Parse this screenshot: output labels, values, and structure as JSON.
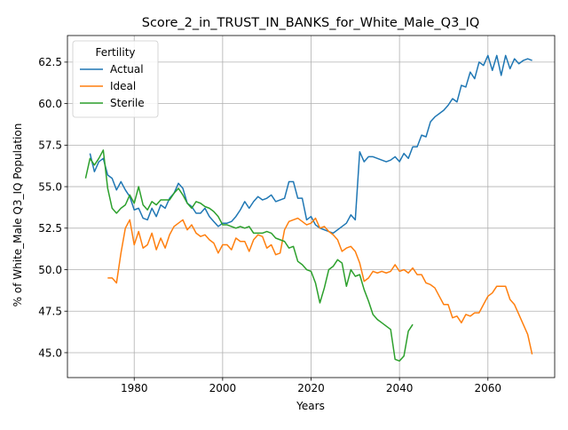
{
  "chart_data": {
    "type": "line",
    "title": "Score_2_in_TRUST_IN_BANKS_for_White_Male_Q3_IQ",
    "xlabel": "Years",
    "ylabel": "% of White_Male Q3_IQ Population",
    "xlim": [
      1964.9,
      2075.1
    ],
    "ylim": [
      43.5,
      64.1
    ],
    "xticks": [
      1980,
      2000,
      2020,
      2040,
      2060
    ],
    "yticks": [
      45.0,
      47.5,
      50.0,
      52.5,
      55.0,
      57.5,
      60.0,
      62.5
    ],
    "grid": true,
    "legend": {
      "title": "Fertility",
      "position": "upper-left"
    },
    "series": [
      {
        "name": "Actual",
        "color": "#1f77b4",
        "points": [
          [
            1970,
            57.0
          ],
          [
            1971,
            55.9
          ],
          [
            1972,
            56.5
          ],
          [
            1973,
            56.7
          ],
          [
            1974,
            55.7
          ],
          [
            1975,
            55.5
          ],
          [
            1976,
            54.8
          ],
          [
            1977,
            55.3
          ],
          [
            1978,
            54.8
          ],
          [
            1979,
            54.4
          ],
          [
            1980,
            53.6
          ],
          [
            1981,
            53.7
          ],
          [
            1982,
            53.1
          ],
          [
            1983,
            53.0
          ],
          [
            1984,
            53.7
          ],
          [
            1985,
            53.2
          ],
          [
            1986,
            53.9
          ],
          [
            1987,
            53.7
          ],
          [
            1988,
            54.3
          ],
          [
            1989,
            54.6
          ],
          [
            1990,
            55.2
          ],
          [
            1991,
            54.9
          ],
          [
            1992,
            54.0
          ],
          [
            1993,
            53.8
          ],
          [
            1994,
            53.4
          ],
          [
            1995,
            53.4
          ],
          [
            1996,
            53.7
          ],
          [
            1997,
            53.2
          ],
          [
            1998,
            52.9
          ],
          [
            1999,
            52.6
          ],
          [
            2000,
            52.8
          ],
          [
            2001,
            52.8
          ],
          [
            2002,
            52.9
          ],
          [
            2003,
            53.2
          ],
          [
            2004,
            53.6
          ],
          [
            2005,
            54.1
          ],
          [
            2006,
            53.7
          ],
          [
            2007,
            54.1
          ],
          [
            2008,
            54.4
          ],
          [
            2009,
            54.2
          ],
          [
            2010,
            54.3
          ],
          [
            2011,
            54.5
          ],
          [
            2012,
            54.1
          ],
          [
            2013,
            54.2
          ],
          [
            2014,
            54.3
          ],
          [
            2015,
            55.3
          ],
          [
            2016,
            55.3
          ],
          [
            2017,
            54.3
          ],
          [
            2018,
            54.3
          ],
          [
            2019,
            53.0
          ],
          [
            2020,
            53.2
          ],
          [
            2021,
            52.7
          ],
          [
            2022,
            52.5
          ],
          [
            2023,
            52.4
          ],
          [
            2024,
            52.3
          ],
          [
            2025,
            52.2
          ],
          [
            2026,
            52.4
          ],
          [
            2027,
            52.6
          ],
          [
            2028,
            52.8
          ],
          [
            2029,
            53.3
          ],
          [
            2030,
            53.0
          ],
          [
            2031,
            57.1
          ],
          [
            2032,
            56.5
          ],
          [
            2033,
            56.8
          ],
          [
            2034,
            56.8
          ],
          [
            2035,
            56.7
          ],
          [
            2036,
            56.6
          ],
          [
            2037,
            56.5
          ],
          [
            2038,
            56.6
          ],
          [
            2039,
            56.8
          ],
          [
            2040,
            56.5
          ],
          [
            2041,
            57.0
          ],
          [
            2042,
            56.7
          ],
          [
            2043,
            57.4
          ],
          [
            2044,
            57.4
          ],
          [
            2045,
            58.1
          ],
          [
            2046,
            58.0
          ],
          [
            2047,
            58.9
          ],
          [
            2048,
            59.2
          ],
          [
            2049,
            59.4
          ],
          [
            2050,
            59.6
          ],
          [
            2051,
            59.9
          ],
          [
            2052,
            60.3
          ],
          [
            2053,
            60.1
          ],
          [
            2054,
            61.1
          ],
          [
            2055,
            61.0
          ],
          [
            2056,
            61.9
          ],
          [
            2057,
            61.5
          ],
          [
            2058,
            62.5
          ],
          [
            2059,
            62.3
          ],
          [
            2060,
            62.9
          ],
          [
            2061,
            62.0
          ],
          [
            2062,
            62.9
          ],
          [
            2063,
            61.7
          ],
          [
            2064,
            62.9
          ],
          [
            2065,
            62.1
          ],
          [
            2066,
            62.7
          ],
          [
            2067,
            62.4
          ],
          [
            2068,
            62.6
          ],
          [
            2069,
            62.7
          ],
          [
            2070,
            62.6
          ]
        ]
      },
      {
        "name": "Ideal",
        "color": "#ff7f0e",
        "points": [
          [
            1974,
            49.5
          ],
          [
            1975,
            49.5
          ],
          [
            1976,
            49.2
          ],
          [
            1977,
            51.0
          ],
          [
            1978,
            52.5
          ],
          [
            1979,
            53.0
          ],
          [
            1980,
            51.5
          ],
          [
            1981,
            52.3
          ],
          [
            1982,
            51.3
          ],
          [
            1983,
            51.5
          ],
          [
            1984,
            52.2
          ],
          [
            1985,
            51.2
          ],
          [
            1986,
            51.9
          ],
          [
            1987,
            51.3
          ],
          [
            1988,
            52.1
          ],
          [
            1989,
            52.6
          ],
          [
            1990,
            52.8
          ],
          [
            1991,
            53.0
          ],
          [
            1992,
            52.4
          ],
          [
            1993,
            52.7
          ],
          [
            1994,
            52.2
          ],
          [
            1995,
            52.0
          ],
          [
            1996,
            52.1
          ],
          [
            1997,
            51.8
          ],
          [
            1998,
            51.6
          ],
          [
            1999,
            51.0
          ],
          [
            2000,
            51.5
          ],
          [
            2001,
            51.5
          ],
          [
            2002,
            51.2
          ],
          [
            2003,
            51.9
          ],
          [
            2004,
            51.7
          ],
          [
            2005,
            51.7
          ],
          [
            2006,
            51.1
          ],
          [
            2007,
            51.8
          ],
          [
            2008,
            52.1
          ],
          [
            2009,
            52.0
          ],
          [
            2010,
            51.3
          ],
          [
            2011,
            51.5
          ],
          [
            2012,
            50.9
          ],
          [
            2013,
            51.0
          ],
          [
            2014,
            52.4
          ],
          [
            2015,
            52.9
          ],
          [
            2016,
            53.0
          ],
          [
            2017,
            53.1
          ],
          [
            2018,
            52.9
          ],
          [
            2019,
            52.7
          ],
          [
            2020,
            52.8
          ],
          [
            2021,
            53.1
          ],
          [
            2022,
            52.5
          ],
          [
            2023,
            52.6
          ],
          [
            2024,
            52.3
          ],
          [
            2025,
            52.1
          ],
          [
            2026,
            51.8
          ],
          [
            2027,
            51.1
          ],
          [
            2028,
            51.3
          ],
          [
            2029,
            51.4
          ],
          [
            2030,
            51.1
          ],
          [
            2031,
            50.4
          ],
          [
            2032,
            49.3
          ],
          [
            2033,
            49.5
          ],
          [
            2034,
            49.9
          ],
          [
            2035,
            49.8
          ],
          [
            2036,
            49.9
          ],
          [
            2037,
            49.8
          ],
          [
            2038,
            49.9
          ],
          [
            2039,
            50.3
          ],
          [
            2040,
            49.9
          ],
          [
            2041,
            50.0
          ],
          [
            2042,
            49.8
          ],
          [
            2043,
            50.1
          ],
          [
            2044,
            49.7
          ],
          [
            2045,
            49.7
          ],
          [
            2046,
            49.2
          ],
          [
            2047,
            49.1
          ],
          [
            2048,
            48.9
          ],
          [
            2049,
            48.4
          ],
          [
            2050,
            47.9
          ],
          [
            2051,
            47.9
          ],
          [
            2052,
            47.1
          ],
          [
            2053,
            47.2
          ],
          [
            2054,
            46.8
          ],
          [
            2055,
            47.3
          ],
          [
            2056,
            47.2
          ],
          [
            2057,
            47.4
          ],
          [
            2058,
            47.4
          ],
          [
            2059,
            47.9
          ],
          [
            2060,
            48.4
          ],
          [
            2061,
            48.6
          ],
          [
            2062,
            49.0
          ],
          [
            2063,
            49.0
          ],
          [
            2064,
            49.0
          ],
          [
            2065,
            48.2
          ],
          [
            2066,
            47.9
          ],
          [
            2067,
            47.3
          ],
          [
            2068,
            46.7
          ],
          [
            2069,
            46.1
          ],
          [
            2070,
            44.9
          ]
        ]
      },
      {
        "name": "Sterile",
        "color": "#2ca02c",
        "points": [
          [
            1969,
            55.5
          ],
          [
            1970,
            56.7
          ],
          [
            1971,
            56.3
          ],
          [
            1972,
            56.7
          ],
          [
            1973,
            57.2
          ],
          [
            1974,
            54.9
          ],
          [
            1975,
            53.7
          ],
          [
            1976,
            53.4
          ],
          [
            1977,
            53.7
          ],
          [
            1978,
            53.9
          ],
          [
            1979,
            54.5
          ],
          [
            1980,
            54.0
          ],
          [
            1981,
            55.0
          ],
          [
            1982,
            53.9
          ],
          [
            1983,
            53.6
          ],
          [
            1984,
            54.1
          ],
          [
            1985,
            53.9
          ],
          [
            1986,
            54.2
          ],
          [
            1987,
            54.2
          ],
          [
            1988,
            54.2
          ],
          [
            1989,
            54.6
          ],
          [
            1990,
            54.9
          ],
          [
            1991,
            54.5
          ],
          [
            1992,
            54.0
          ],
          [
            1993,
            53.7
          ],
          [
            1994,
            54.1
          ],
          [
            1995,
            54.0
          ],
          [
            1996,
            53.8
          ],
          [
            1997,
            53.7
          ],
          [
            1998,
            53.5
          ],
          [
            1999,
            53.2
          ],
          [
            2000,
            52.7
          ],
          [
            2001,
            52.7
          ],
          [
            2002,
            52.6
          ],
          [
            2003,
            52.5
          ],
          [
            2004,
            52.6
          ],
          [
            2005,
            52.5
          ],
          [
            2006,
            52.6
          ],
          [
            2007,
            52.2
          ],
          [
            2008,
            52.2
          ],
          [
            2009,
            52.2
          ],
          [
            2010,
            52.3
          ],
          [
            2011,
            52.2
          ],
          [
            2012,
            51.9
          ],
          [
            2013,
            51.8
          ],
          [
            2014,
            51.7
          ],
          [
            2015,
            51.3
          ],
          [
            2016,
            51.4
          ],
          [
            2017,
            50.5
          ],
          [
            2018,
            50.3
          ],
          [
            2019,
            50.0
          ],
          [
            2020,
            49.9
          ],
          [
            2021,
            49.2
          ],
          [
            2022,
            48.0
          ],
          [
            2023,
            48.9
          ],
          [
            2024,
            50.0
          ],
          [
            2025,
            50.2
          ],
          [
            2026,
            50.6
          ],
          [
            2027,
            50.4
          ],
          [
            2028,
            49.0
          ],
          [
            2029,
            50.0
          ],
          [
            2030,
            49.6
          ],
          [
            2031,
            49.7
          ],
          [
            2032,
            48.8
          ],
          [
            2033,
            48.1
          ],
          [
            2034,
            47.3
          ],
          [
            2035,
            47.0
          ],
          [
            2036,
            46.8
          ],
          [
            2037,
            46.6
          ],
          [
            2038,
            46.4
          ],
          [
            2039,
            44.6
          ],
          [
            2040,
            44.5
          ],
          [
            2041,
            44.8
          ],
          [
            2042,
            46.3
          ],
          [
            2043,
            46.7
          ]
        ]
      }
    ]
  }
}
